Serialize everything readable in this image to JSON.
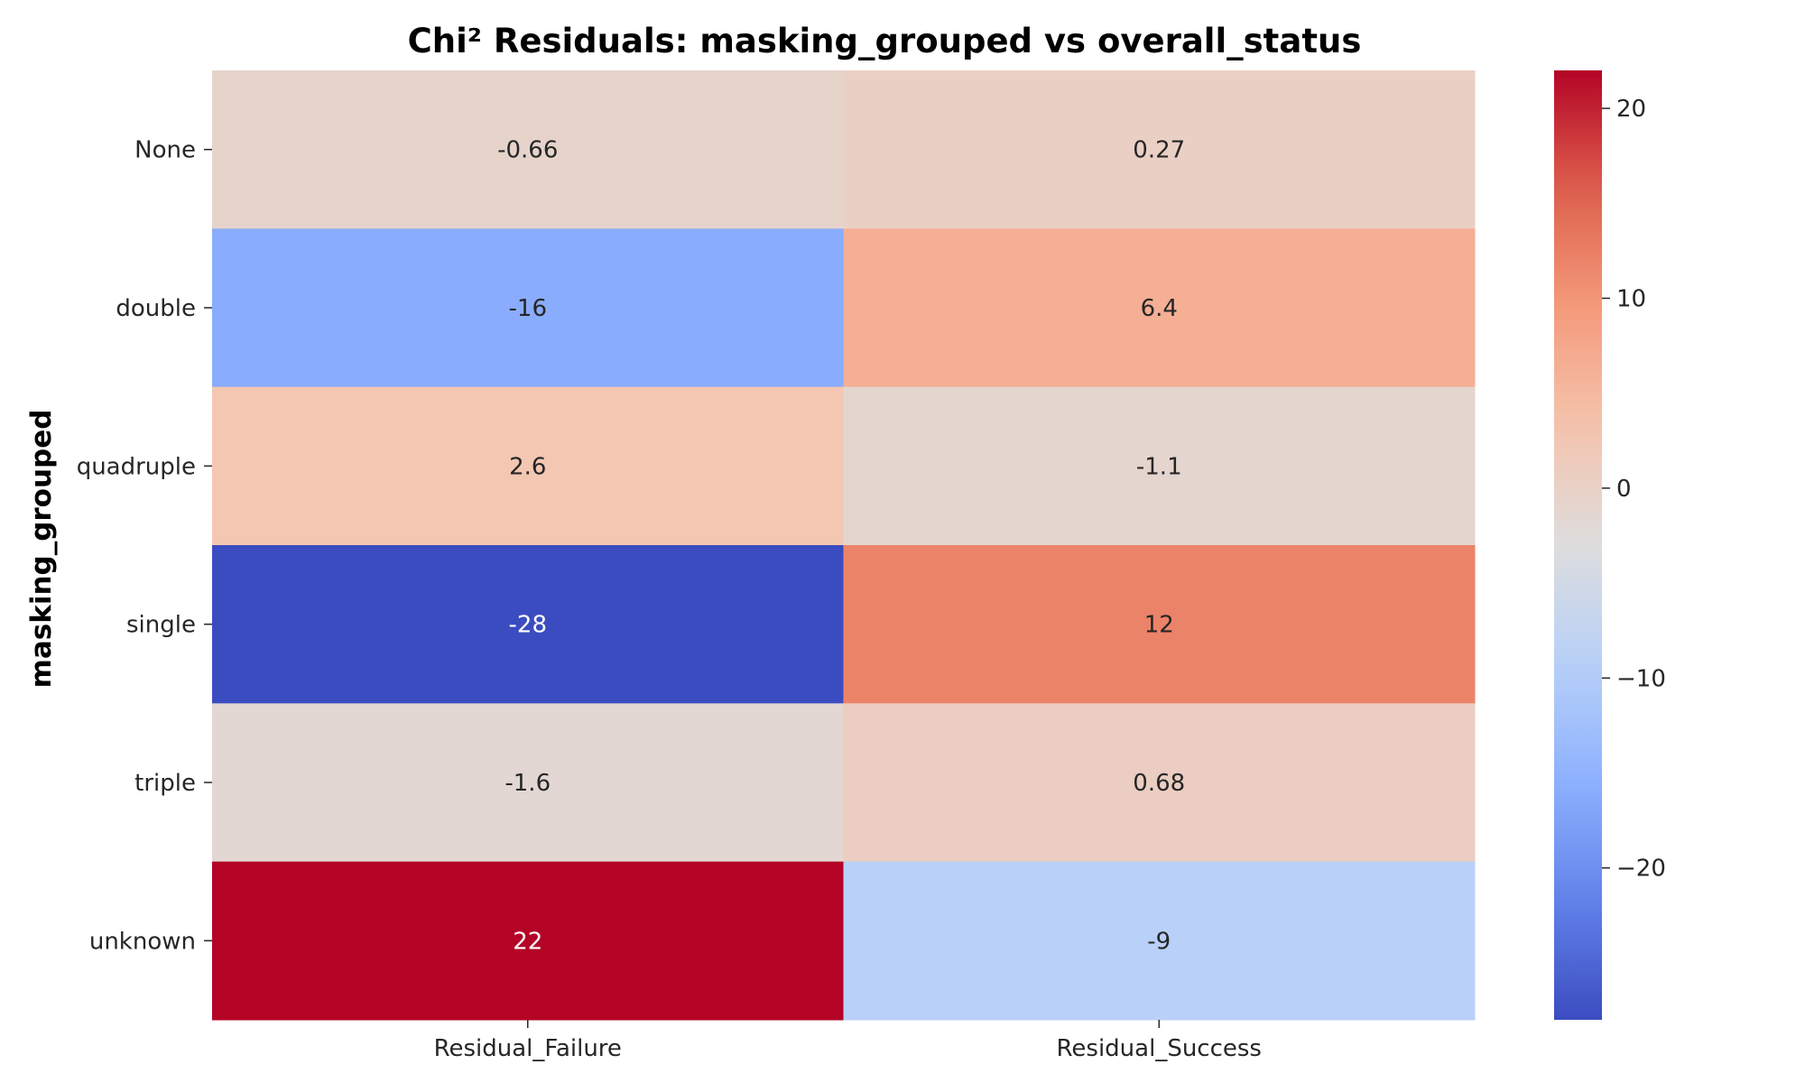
{
  "chart_data": {
    "type": "heatmap",
    "title": "Chi² Residuals: masking_grouped vs overall_status",
    "ylabel": "masking_grouped",
    "xlabel": "",
    "rows": [
      "None",
      "double",
      "quadruple",
      "single",
      "triple",
      "unknown"
    ],
    "columns": [
      "Residual_Failure",
      "Residual_Success"
    ],
    "values": [
      [
        -0.66,
        0.27
      ],
      [
        -16,
        6.4
      ],
      [
        2.6,
        -1.1
      ],
      [
        -28,
        12
      ],
      [
        -1.6,
        0.68
      ],
      [
        22,
        -9
      ]
    ],
    "annotations": [
      [
        "-0.66",
        "0.27"
      ],
      [
        "-16",
        "6.4"
      ],
      [
        "2.6",
        "-1.1"
      ],
      [
        "-28",
        "12"
      ],
      [
        "-1.6",
        "0.68"
      ],
      [
        "22",
        "-9"
      ]
    ],
    "colormap": "coolwarm",
    "vmin": -28,
    "vmax": 22,
    "colorbar_ticks": [
      20,
      10,
      0,
      -10,
      -20
    ],
    "colorbar_tick_labels": [
      "20",
      "10",
      "0",
      "−10",
      "−20"
    ],
    "colors": {
      "low": "#3b4cc0",
      "mid": "#dddddd",
      "high": "#b40426"
    }
  }
}
